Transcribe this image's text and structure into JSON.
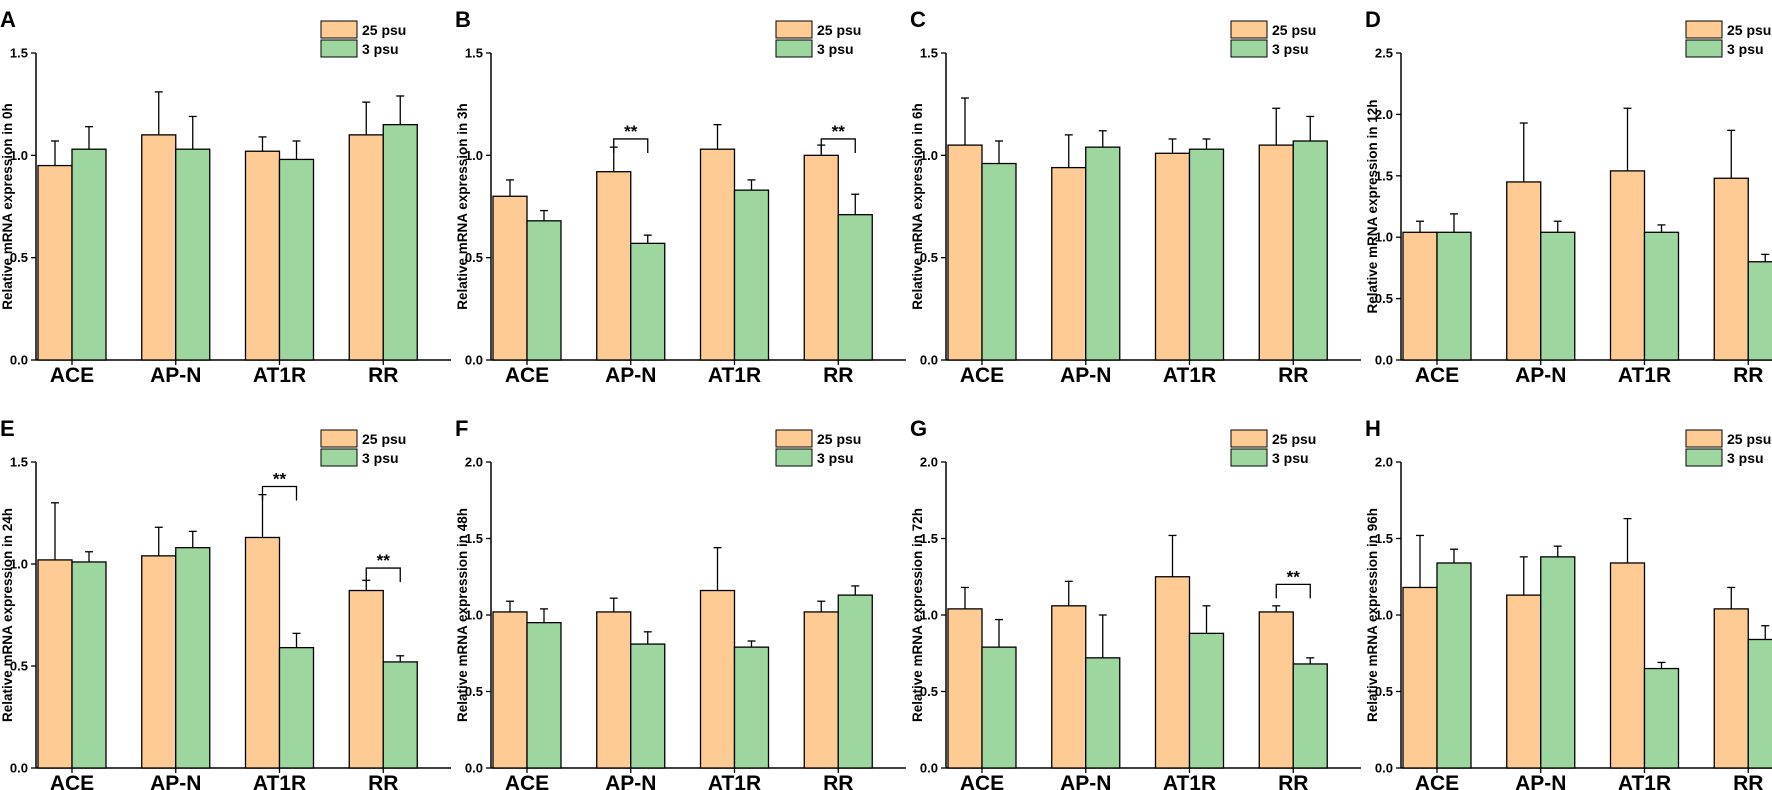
{
  "legend": {
    "series_a": "25 psu",
    "series_b": "3 psu"
  },
  "colors": {
    "series_a": "#FDCB93",
    "series_b": "#9ED69F",
    "stroke": "#000000"
  },
  "chart_data": [
    {
      "panel": "A",
      "type": "bar",
      "ylabel": "Relative mRNA expression in 0h",
      "ylim": [
        0,
        1.5
      ],
      "yticks": [
        "0.0",
        "0.5",
        "1.0",
        "1.5"
      ],
      "categories": [
        "ACE",
        "AP-N",
        "AT1R",
        "RR"
      ],
      "series": [
        {
          "name": "25 psu",
          "values": [
            0.95,
            1.1,
            1.02,
            1.1
          ],
          "errors": [
            0.12,
            0.21,
            0.07,
            0.16
          ]
        },
        {
          "name": "3 psu",
          "values": [
            1.03,
            1.03,
            0.98,
            1.15
          ],
          "errors": [
            0.11,
            0.16,
            0.09,
            0.14
          ]
        }
      ],
      "significance": []
    },
    {
      "panel": "B",
      "type": "bar",
      "ylabel": "Relative mRNA expression in 3h",
      "ylim": [
        0,
        1.5
      ],
      "yticks": [
        "0.0",
        "0.5",
        "1.0",
        "1.5"
      ],
      "categories": [
        "ACE",
        "AP-N",
        "AT1R",
        "RR"
      ],
      "series": [
        {
          "name": "25 psu",
          "values": [
            0.8,
            0.92,
            1.03,
            1.0
          ],
          "errors": [
            0.08,
            0.12,
            0.12,
            0.05
          ]
        },
        {
          "name": "3 psu",
          "values": [
            0.68,
            0.57,
            0.83,
            0.71
          ],
          "errors": [
            0.05,
            0.04,
            0.05,
            0.1
          ]
        }
      ],
      "significance": [
        {
          "category": 1,
          "y": 1.08,
          "label": "**"
        },
        {
          "category": 3,
          "y": 1.08,
          "label": "**"
        }
      ]
    },
    {
      "panel": "C",
      "type": "bar",
      "ylabel": "Relative mRNA expression in 6h",
      "ylim": [
        0,
        1.5
      ],
      "yticks": [
        "0.0",
        "0.5",
        "1.0",
        "1.5"
      ],
      "categories": [
        "ACE",
        "AP-N",
        "AT1R",
        "RR"
      ],
      "series": [
        {
          "name": "25 psu",
          "values": [
            1.05,
            0.94,
            1.01,
            1.05
          ],
          "errors": [
            0.23,
            0.16,
            0.07,
            0.18
          ]
        },
        {
          "name": "3 psu",
          "values": [
            0.96,
            1.04,
            1.03,
            1.07
          ],
          "errors": [
            0.11,
            0.08,
            0.05,
            0.12
          ]
        }
      ],
      "significance": []
    },
    {
      "panel": "D",
      "type": "bar",
      "ylabel": "Relative mRNA expression in 12h",
      "ylim": [
        0,
        2.5
      ],
      "yticks": [
        "0.0",
        "0.5",
        "1.0",
        "1.5",
        "2.0",
        "2.5"
      ],
      "categories": [
        "ACE",
        "AP-N",
        "AT1R",
        "RR"
      ],
      "series": [
        {
          "name": "25 psu",
          "values": [
            1.04,
            1.45,
            1.54,
            1.48
          ],
          "errors": [
            0.09,
            0.48,
            0.51,
            0.39
          ]
        },
        {
          "name": "3 psu",
          "values": [
            1.04,
            1.04,
            1.04,
            0.8
          ],
          "errors": [
            0.15,
            0.09,
            0.06,
            0.06
          ]
        }
      ],
      "significance": []
    },
    {
      "panel": "E",
      "type": "bar",
      "ylabel": "Relative mRNA expression in 24h",
      "ylim": [
        0,
        1.5
      ],
      "yticks": [
        "0.0",
        "0.5",
        "1.0",
        "1.5"
      ],
      "categories": [
        "ACE",
        "AP-N",
        "AT1R",
        "RR"
      ],
      "series": [
        {
          "name": "25 psu",
          "values": [
            1.02,
            1.04,
            1.13,
            0.87
          ],
          "errors": [
            0.28,
            0.14,
            0.21,
            0.05
          ]
        },
        {
          "name": "3 psu",
          "values": [
            1.01,
            1.08,
            0.59,
            0.52
          ],
          "errors": [
            0.05,
            0.08,
            0.07,
            0.03
          ]
        }
      ],
      "significance": [
        {
          "category": 2,
          "y": 1.38,
          "label": "**"
        },
        {
          "category": 3,
          "y": 0.98,
          "label": "**"
        }
      ]
    },
    {
      "panel": "F",
      "type": "bar",
      "ylabel": "Relative mRNA expression in 48h",
      "ylim": [
        0,
        2.0
      ],
      "yticks": [
        "0.0",
        "0.5",
        "1.0",
        "1.5",
        "2.0"
      ],
      "categories": [
        "ACE",
        "AP-N",
        "AT1R",
        "RR"
      ],
      "series": [
        {
          "name": "25 psu",
          "values": [
            1.02,
            1.02,
            1.16,
            1.02
          ],
          "errors": [
            0.07,
            0.09,
            0.28,
            0.07
          ]
        },
        {
          "name": "3 psu",
          "values": [
            0.95,
            0.81,
            0.79,
            1.13
          ],
          "errors": [
            0.09,
            0.08,
            0.04,
            0.06
          ]
        }
      ],
      "significance": []
    },
    {
      "panel": "G",
      "type": "bar",
      "ylabel": "Relative mRNA expression in 72h",
      "ylim": [
        0,
        2.0
      ],
      "yticks": [
        "0.0",
        "0.5",
        "1.0",
        "1.5",
        "2.0"
      ],
      "categories": [
        "ACE",
        "AP-N",
        "AT1R",
        "RR"
      ],
      "series": [
        {
          "name": "25 psu",
          "values": [
            1.04,
            1.06,
            1.25,
            1.02
          ],
          "errors": [
            0.14,
            0.16,
            0.27,
            0.04
          ]
        },
        {
          "name": "3 psu",
          "values": [
            0.79,
            0.72,
            0.88,
            0.68
          ],
          "errors": [
            0.18,
            0.28,
            0.18,
            0.04
          ]
        }
      ],
      "significance": [
        {
          "category": 3,
          "y": 1.2,
          "label": "**"
        }
      ]
    },
    {
      "panel": "H",
      "type": "bar",
      "ylabel": "Relative mRNA expression in 96h",
      "ylim": [
        0,
        2.0
      ],
      "yticks": [
        "0.0",
        "0.5",
        "1.0",
        "1.5",
        "2.0"
      ],
      "categories": [
        "ACE",
        "AP-N",
        "AT1R",
        "RR"
      ],
      "series": [
        {
          "name": "25 psu",
          "values": [
            1.18,
            1.13,
            1.34,
            1.04
          ],
          "errors": [
            0.34,
            0.25,
            0.29,
            0.14
          ]
        },
        {
          "name": "3 psu",
          "values": [
            1.34,
            1.38,
            0.65,
            0.84
          ],
          "errors": [
            0.09,
            0.07,
            0.04,
            0.09
          ]
        }
      ],
      "significance": []
    }
  ]
}
